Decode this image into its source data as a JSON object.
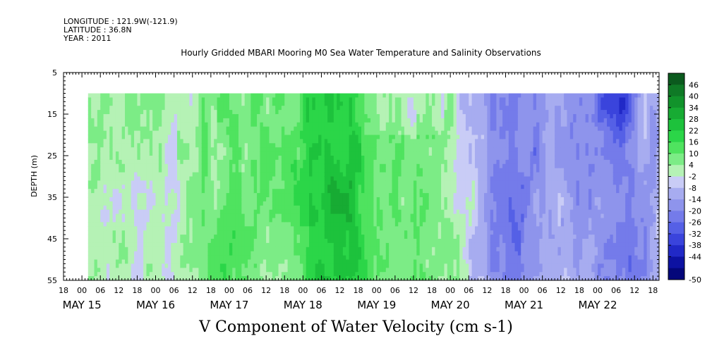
{
  "header": {
    "longitude": "LONGITUDE : 121.9W(-121.9)",
    "latitude": "LATITUDE : 36.8N",
    "year": "YEAR : 2011"
  },
  "chart_data": {
    "type": "heatmap",
    "title": "Hourly Gridded MBARI Mooring M0 Sea Water Temperature and Salinity Observations",
    "xlabel": "V Component of Water Velocity (cm s-1)",
    "ylabel": "DEPTH (m)",
    "y_axis": {
      "range": [
        5,
        55
      ],
      "inverted": true,
      "tick_labels": [
        "5",
        "15",
        "25",
        "35",
        "45",
        "55"
      ]
    },
    "x_axis": {
      "range": [
        "2011-05-14T18:00",
        "2011-05-22T20:00"
      ],
      "hour_tick_labels": [
        "18",
        "00",
        "06",
        "12",
        "18",
        "00",
        "06",
        "12",
        "18",
        "00",
        "06",
        "12",
        "18",
        "00",
        "06",
        "12",
        "18",
        "00",
        "06",
        "12",
        "18",
        "00",
        "06",
        "12",
        "18",
        "00",
        "06",
        "12",
        "18",
        "00",
        "06",
        "12",
        "18"
      ],
      "date_labels": [
        "MAY 15",
        "MAY 16",
        "MAY 17",
        "MAY 18",
        "MAY 19",
        "MAY 20",
        "MAY 21",
        "MAY 22"
      ]
    },
    "data_extent": {
      "time_start": "2011-05-15T02:00",
      "time_end": "2011-05-22T20:00",
      "depth_top": 10,
      "depth_bottom": 55
    },
    "colorbar": {
      "levels": [
        46,
        40,
        34,
        28,
        22,
        16,
        10,
        4,
        -2,
        -8,
        -14,
        -20,
        -26,
        -32,
        -38,
        -44,
        -50
      ],
      "colors": [
        "#0b5a1e",
        "#0f7a26",
        "#11932b",
        "#17ab33",
        "#1dc23c",
        "#2bd648",
        "#4fe35f",
        "#7cec86",
        "#b5f2b5",
        "#c9ccf6",
        "#a7acf0",
        "#8e94ec",
        "#747bea",
        "#5560e6",
        "#3a44dc",
        "#2129c7",
        "#0d12a2",
        "#04077a"
      ]
    },
    "dominant_features": [
      {
        "period": "May 17 12:00 - May 18 00:00",
        "sign": "positive",
        "peak": 28
      },
      {
        "period": "May 18 00:00 - May 19 16:00",
        "sign": "positive",
        "peak": 28
      },
      {
        "period": "May 19 18:00 - May 22 20:00",
        "sign": "negative",
        "peak": -32
      }
    ]
  }
}
